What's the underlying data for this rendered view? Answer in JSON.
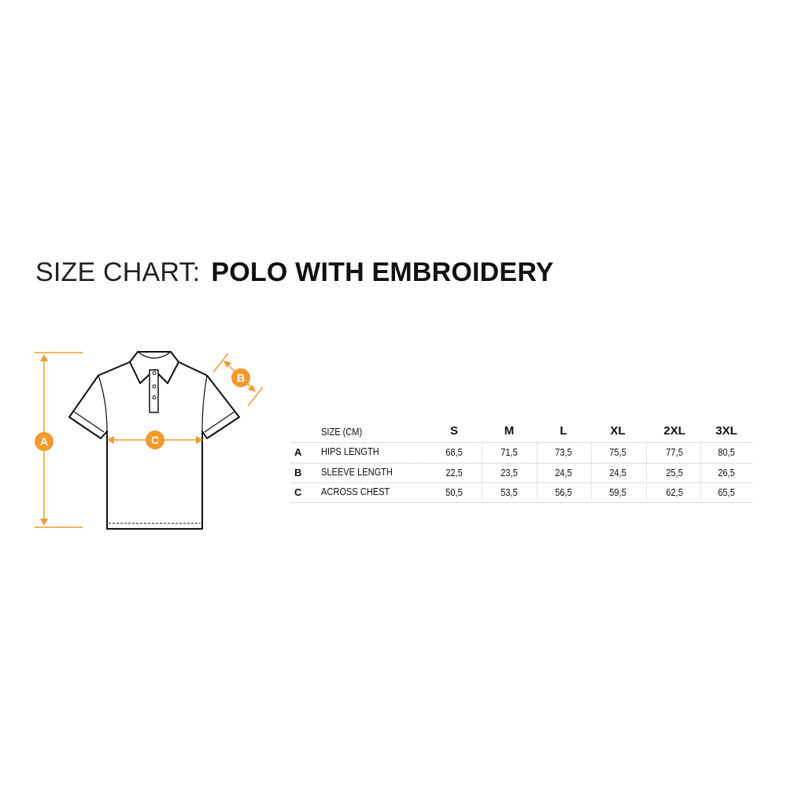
{
  "title": {
    "prefix": "SIZE CHART:",
    "product": "POLO WITH EMBROIDERY"
  },
  "diagram": {
    "markers": [
      "A",
      "B",
      "C"
    ],
    "accent_color": "#F39A2E"
  },
  "table": {
    "header_label": "SIZE (CM)",
    "sizes": [
      "S",
      "M",
      "L",
      "XL",
      "2XL",
      "3XL"
    ],
    "rows": [
      {
        "letter": "A",
        "label": "HIPS LENGTH",
        "values": [
          "68,5",
          "71,5",
          "73,5",
          "75,5",
          "77,5",
          "80,5"
        ]
      },
      {
        "letter": "B",
        "label": "SLEEVE LENGTH",
        "values": [
          "22,5",
          "23,5",
          "24,5",
          "24,5",
          "25,5",
          "26,5"
        ]
      },
      {
        "letter": "C",
        "label": "ACROSS CHEST",
        "values": [
          "50,5",
          "53,5",
          "56,5",
          "59,5",
          "62,5",
          "65,5"
        ]
      }
    ]
  }
}
